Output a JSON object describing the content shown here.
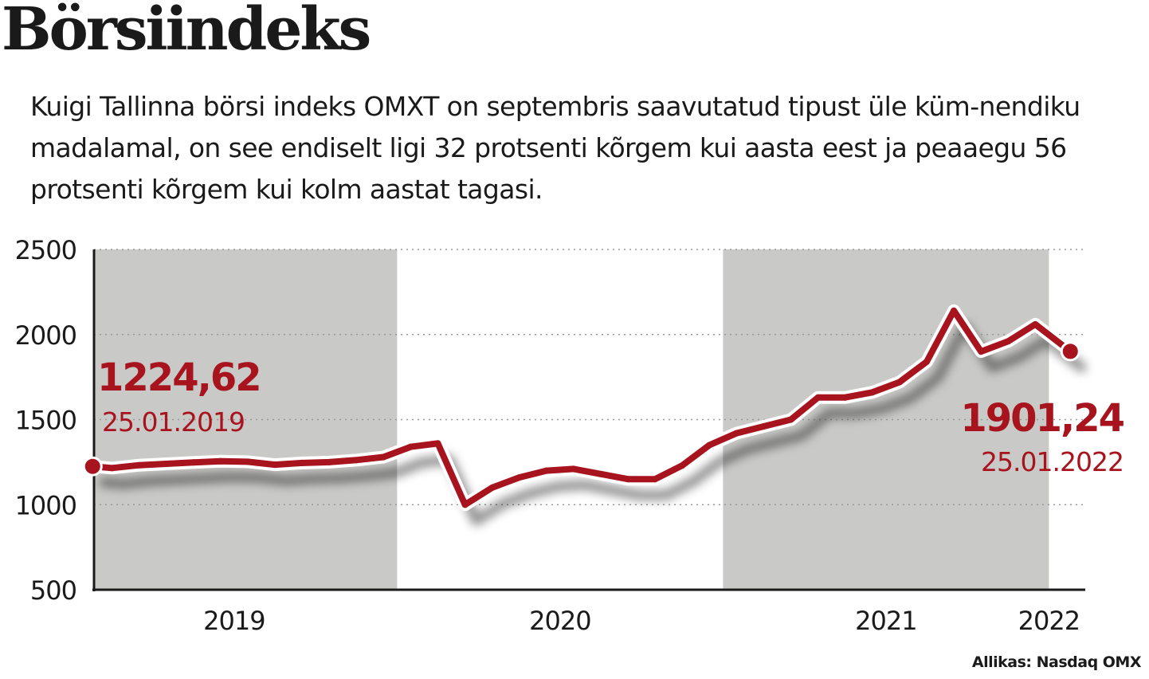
{
  "header": {
    "title": "Börsiindeks",
    "subtitle": "Kuigi Tallinna börsi indeks OMXT on septembris saavutatud tipust üle küm-nendiku madalamal, on see endiselt ligi 32 protsenti kõrgem kui aasta eest ja peaaegu 56 protsenti kõrgem kui kolm aastat tagasi."
  },
  "source": "Allikas: Nasdaq OMX",
  "colors": {
    "line": "#a8141e",
    "shade": "#c9c9c7",
    "text": "#1a1a1a",
    "grid": "#999999"
  },
  "chart_data": {
    "type": "line",
    "title": "",
    "xlabel": "",
    "ylabel": "",
    "ylim": [
      500,
      2500
    ],
    "yticks": [
      500,
      1000,
      1500,
      2000,
      2500
    ],
    "xticks": [
      {
        "label": "2019",
        "year": 2019.5
      },
      {
        "label": "2020",
        "year": 2020.5
      },
      {
        "label": "2021",
        "year": 2021.5
      },
      {
        "label": "2022",
        "year": 2022
      }
    ],
    "shaded_years": [
      {
        "from": 2019.07,
        "to": 2020.0
      },
      {
        "from": 2021.0,
        "to": 2022.0
      }
    ],
    "grid": true,
    "series": [
      {
        "points": [
          [
            "25.01.2019",
            1225
          ],
          [
            "02.2019",
            1215
          ],
          [
            "03.2019",
            1232
          ],
          [
            "04.2019",
            1240
          ],
          [
            "05.2019",
            1248
          ],
          [
            "06.2019",
            1255
          ],
          [
            "07.2019",
            1252
          ],
          [
            "08.2019",
            1235
          ],
          [
            "09.2019",
            1245
          ],
          [
            "10.2019",
            1250
          ],
          [
            "11.2019",
            1262
          ],
          [
            "12.2019",
            1280
          ],
          [
            "01.2020",
            1340
          ],
          [
            "02.2020",
            1360
          ],
          [
            "03.2020",
            1000
          ],
          [
            "04.2020",
            1100
          ],
          [
            "05.2020",
            1160
          ],
          [
            "06.2020",
            1200
          ],
          [
            "07.2020",
            1210
          ],
          [
            "08.2020",
            1180
          ],
          [
            "09.2020",
            1150
          ],
          [
            "10.2020",
            1150
          ],
          [
            "11.2020",
            1230
          ],
          [
            "12.2020",
            1350
          ],
          [
            "01.2021",
            1420
          ],
          [
            "02.2021",
            1460
          ],
          [
            "03.2021",
            1500
          ],
          [
            "04.2021",
            1630
          ],
          [
            "05.2021",
            1630
          ],
          [
            "06.2021",
            1660
          ],
          [
            "07.2021",
            1720
          ],
          [
            "08.2021",
            1840
          ],
          [
            "09.2021",
            2140
          ],
          [
            "10.2021",
            1900
          ],
          [
            "11.2021",
            1960
          ],
          [
            "12.2021",
            2060
          ],
          [
            "25.01.2022",
            1901
          ]
        ]
      }
    ],
    "annotations": [
      {
        "value": "1224,62",
        "date": "25.01.2019"
      },
      {
        "value": "1901,24",
        "date": "25.01.2022"
      }
    ]
  }
}
